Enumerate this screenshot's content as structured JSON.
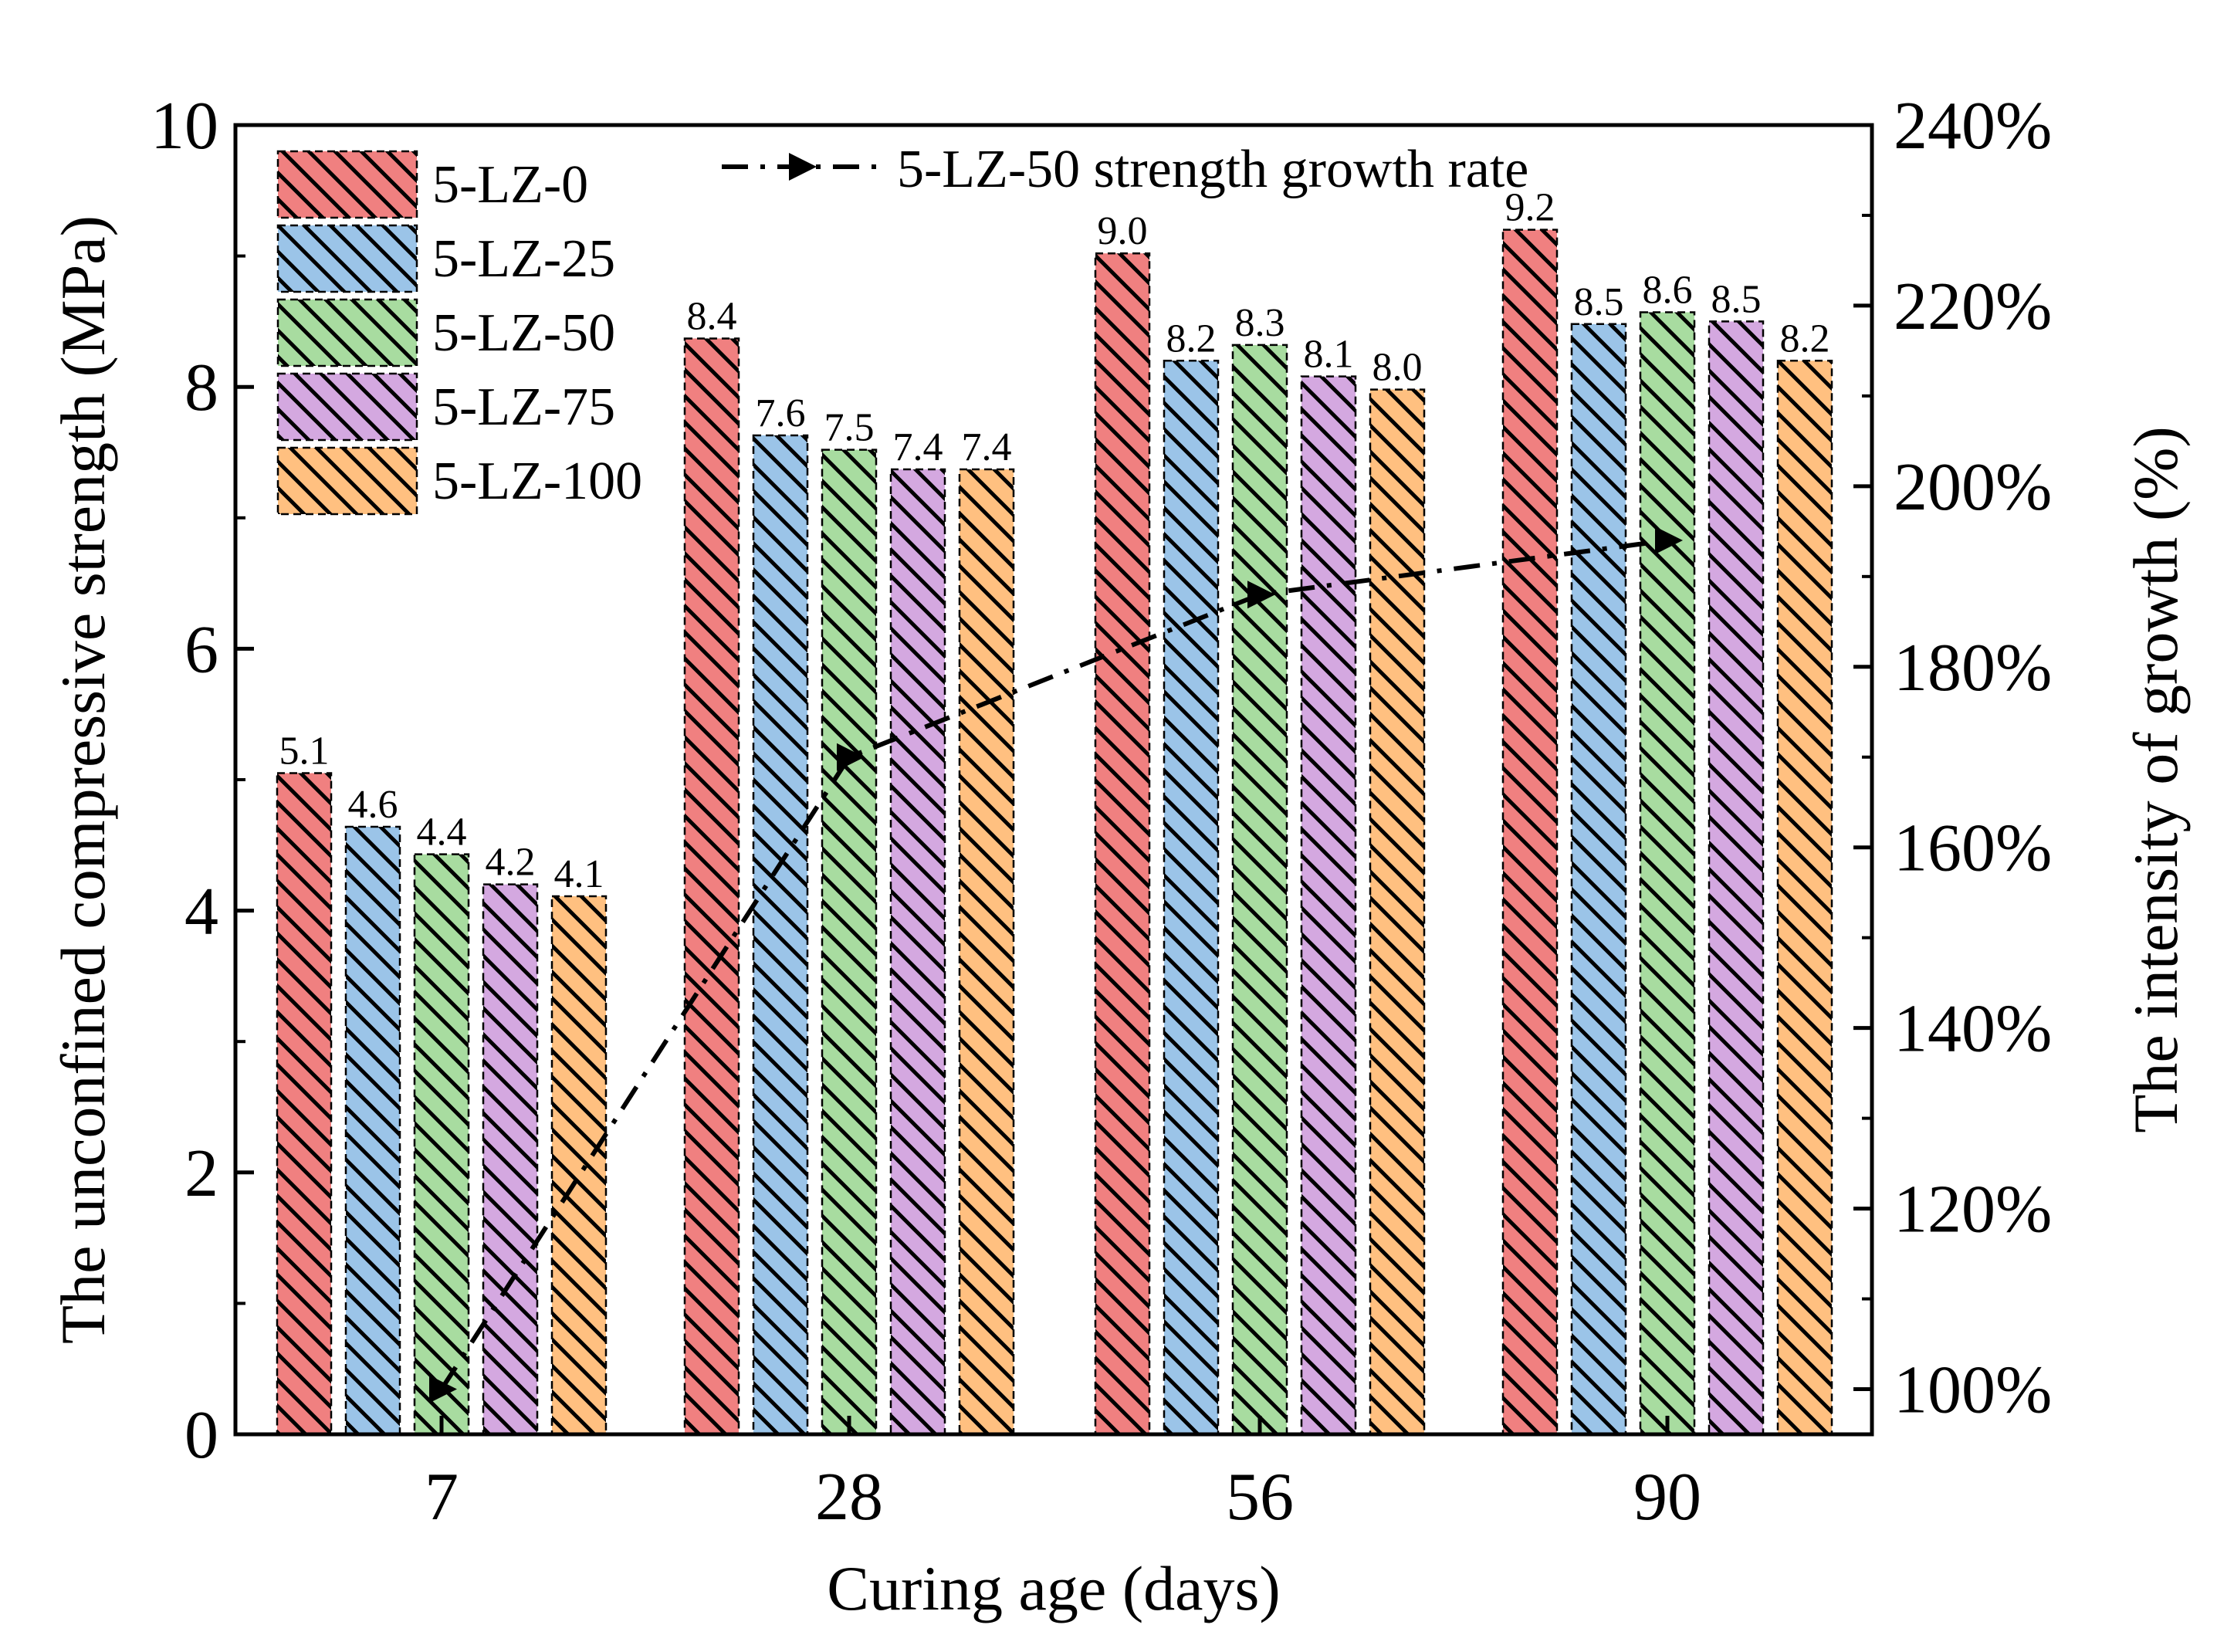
{
  "chart_data": {
    "type": "bar",
    "title": "",
    "xlabel": "Curing age (days)",
    "ylabel": "The unconfined compressive strength (MPa)",
    "y2label": "The intensity of growth (%)",
    "categories": [
      "7",
      "28",
      "56",
      "90"
    ],
    "ylim": [
      0,
      10
    ],
    "yticks": [
      "0",
      "2",
      "4",
      "6",
      "8",
      "10"
    ],
    "y2lim": [
      95,
      240
    ],
    "y2ticks": [
      "100%",
      "120%",
      "140%",
      "160%",
      "180%",
      "200%",
      "220%",
      "240%"
    ],
    "series": [
      {
        "name": "5-LZ-0",
        "color": "#f08080",
        "values": [
          5.05,
          8.37,
          9.02,
          9.2
        ],
        "labels": [
          "5.1",
          "8.4",
          "9.0",
          "9.2"
        ]
      },
      {
        "name": "5-LZ-25",
        "color": "#9bc4e8",
        "values": [
          4.64,
          7.63,
          8.2,
          8.48
        ],
        "labels": [
          "4.6",
          "7.6",
          "8.2",
          "8.5"
        ]
      },
      {
        "name": "5-LZ-50",
        "color": "#a8dca0",
        "values": [
          4.43,
          7.52,
          8.32,
          8.57
        ],
        "labels": [
          "4.4",
          "7.5",
          "8.3",
          "8.6"
        ]
      },
      {
        "name": "5-LZ-75",
        "color": "#d4a8e0",
        "values": [
          4.2,
          7.37,
          8.08,
          8.5
        ],
        "labels": [
          "4.2",
          "7.4",
          "8.1",
          "8.5"
        ]
      },
      {
        "name": "5-LZ-100",
        "color": "#ffc080",
        "values": [
          4.11,
          7.37,
          7.98,
          8.2
        ],
        "labels": [
          "4.1",
          "7.4",
          "8.0",
          "8.2"
        ]
      }
    ],
    "line": {
      "name": "5-LZ-50 strength growth rate",
      "axis": "right",
      "values": [
        100,
        170,
        188,
        194
      ]
    },
    "legend_position": "top-left"
  }
}
